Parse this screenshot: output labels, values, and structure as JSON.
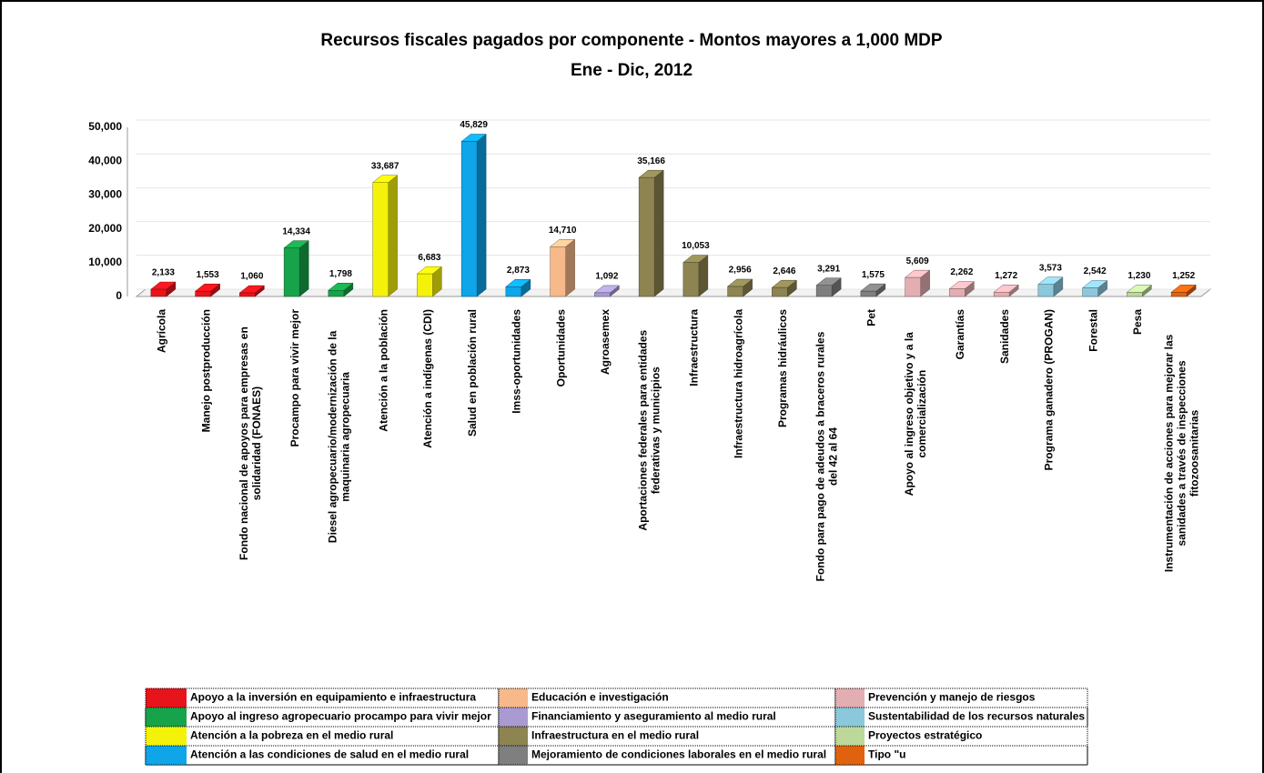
{
  "chart_data": {
    "type": "bar3d",
    "title": "Recursos fiscales pagados por componente - Montos mayores a 1,000 MDP",
    "subtitle": "Ene - Dic, 2012",
    "categories": [
      "Agrícola",
      "Manejo postproducción",
      "Fondo nacional de apoyos para empresas en solidaridad (FONAES)",
      "Procampo para vivir mejor",
      "Diesel agropecuario/modernización de la maquinaria agropecuaria",
      "Atención a la población",
      "Atención a indígenas (CDI)",
      "Salud en población rural",
      "Imss-oportunidades",
      "Oportunidades",
      "Agroasemex",
      "Aportaciones federales para entidades federativas y municipios",
      "Infraestructura",
      "Infraestructura hidroagrícola",
      "Programas hidráulicos",
      "Fondo para pago de adeudos a braceros rurales del 42 al 64",
      "Pet",
      "Apoyo al ingreso objetivo y a la comercialización",
      "Garantías",
      "Sanidades",
      "Programa ganadero (PROGAN)",
      "Forestal",
      "Pesa",
      "Instrumentación de acciones para mejorar las sanidades a través de inspecciones fitozoosanitarias"
    ],
    "values": [
      2133,
      1553,
      1060,
      14334,
      1798,
      33687,
      6683,
      45829,
      2873,
      14710,
      1092,
      35166,
      10053,
      2956,
      2646,
      3291,
      1575,
      5609,
      2262,
      1272,
      3573,
      2542,
      1230,
      1252
    ],
    "value_labels": [
      "2,133",
      "1,553",
      "1,060",
      "14,334",
      "1,798",
      "33,687",
      "6,683",
      "45,829",
      "2,873",
      "14,710",
      "1,092",
      "35,166",
      "10,053",
      "2,956",
      "2,646",
      "3,291",
      "1,575",
      "5,609",
      "2,262",
      "1,272",
      "3,573",
      "2,542",
      "1,230",
      "1,252"
    ],
    "colors": [
      "#e8141b",
      "#e8141b",
      "#e8141b",
      "#17a34a",
      "#17a34a",
      "#f5f20a",
      "#f5f20a",
      "#0ea5e9",
      "#0ea5e9",
      "#f7b98a",
      "#a99bd1",
      "#8d8452",
      "#8d8452",
      "#8d8452",
      "#8d8452",
      "#7f7f7f",
      "#7f7f7f",
      "#e3aeb2",
      "#e3aeb2",
      "#e3aeb2",
      "#8cc8dc",
      "#8cc8dc",
      "#bcd99a",
      "#e0620f"
    ],
    "ylim": [
      0,
      50000
    ],
    "yticks": [
      0,
      {
        "value": 10000,
        "label": "10,000"
      },
      {
        "value": 20000,
        "label": "20,000"
      },
      {
        "value": 30000,
        "label": "30,000"
      },
      {
        "value": 40000,
        "label": "40,000"
      },
      {
        "value": 50000,
        "label": "50,000"
      }
    ],
    "grid": true,
    "legend": [
      {
        "name": "Apoyo a la inversión en equipamiento e infraestructura",
        "color": "#e8141b"
      },
      {
        "name": "Apoyo al ingreso agropecuario procampo para vivir mejor",
        "color": "#17a34a"
      },
      {
        "name": "Atención a la pobreza en el medio rural",
        "color": "#f5f20a"
      },
      {
        "name": "Atención a las condiciones de salud en el medio rural",
        "color": "#0ea5e9"
      },
      {
        "name": "Educación e investigación",
        "color": "#f7b98a"
      },
      {
        "name": "Financiamiento y aseguramiento al medio rural",
        "color": "#a99bd1"
      },
      {
        "name": "Infraestructura en el medio rural",
        "color": "#8d8452"
      },
      {
        "name": "Mejoramiento de condiciones laborales en el medio rural",
        "color": "#7f7f7f"
      },
      {
        "name": "Prevención y manejo de riesgos",
        "color": "#e3aeb2"
      },
      {
        "name": "Sustentabilidad de los recursos naturales",
        "color": "#8cc8dc"
      },
      {
        "name": "Proyectos estratégico",
        "color": "#bcd99a"
      },
      {
        "name": "Tipo \"u",
        "color": "#e0620f"
      }
    ]
  }
}
